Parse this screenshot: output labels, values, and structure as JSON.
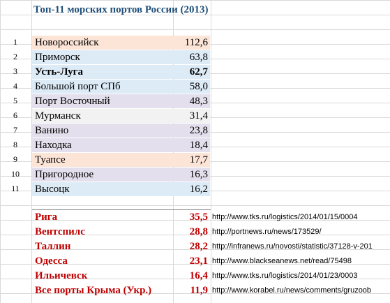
{
  "title": "Топ-11 морских портов России (2013)",
  "colors": {
    "peach": "#fce4d6",
    "lightblue": "#ddebf7",
    "lavender": "#e4dfec",
    "grey": "#f2f2f2",
    "accent_red": "#c00000",
    "title_blue": "#1f4e79"
  },
  "russia_ports": [
    {
      "idx": "1",
      "name": "Новороссийск",
      "value": "112,6",
      "color": "#fce4d6",
      "bold": false
    },
    {
      "idx": "2",
      "name": "Приморск",
      "value": "63,8",
      "color": "#ddebf7",
      "bold": false
    },
    {
      "idx": "3",
      "name": "Усть-Луга",
      "value": "62,7",
      "color": "#ddebf7",
      "bold": true
    },
    {
      "idx": "4",
      "name": "Большой порт СПб",
      "value": "58,0",
      "color": "#ddebf7",
      "bold": false
    },
    {
      "idx": "5",
      "name": "Порт Восточный",
      "value": "48,3",
      "color": "#e4dfec",
      "bold": false
    },
    {
      "idx": "6",
      "name": "Мурманск",
      "value": "31,4",
      "color": "#f2f2f2",
      "bold": false
    },
    {
      "idx": "7",
      "name": "Ванино",
      "value": "23,8",
      "color": "#e4dfec",
      "bold": false
    },
    {
      "idx": "8",
      "name": "Находка",
      "value": "18,4",
      "color": "#e4dfec",
      "bold": false
    },
    {
      "idx": "9",
      "name": "Туапсе",
      "value": "17,7",
      "color": "#fce4d6",
      "bold": false
    },
    {
      "idx": "10",
      "name": "Пригородное",
      "value": "16,3",
      "color": "#e4dfec",
      "bold": false
    },
    {
      "idx": "11",
      "name": "Высоцк",
      "value": "16,2",
      "color": "#ddebf7",
      "bold": false
    }
  ],
  "other_ports": [
    {
      "name": "Рига",
      "value": "35,5",
      "source": "http://www.tks.ru/logistics/2014/01/15/0004"
    },
    {
      "name": "Вентспилс",
      "value": "28,8",
      "source": "http://portnews.ru/news/173529/"
    },
    {
      "name": "Таллин",
      "value": "28,2",
      "source": "http://infranews.ru/novosti/statistic/37128-v-201"
    },
    {
      "name": "Одесса",
      "value": "23,1",
      "source": "http://www.blackseanews.net/read/75498"
    },
    {
      "name": "Ильичевск",
      "value": "16,4",
      "source": "http://www.tks.ru/logistics/2014/01/23/0003"
    },
    {
      "name": "Все порты Крыма (Укр.)",
      "value": "11,9",
      "source": "http://www.korabel.ru/news/comments/gruzoob"
    }
  ]
}
